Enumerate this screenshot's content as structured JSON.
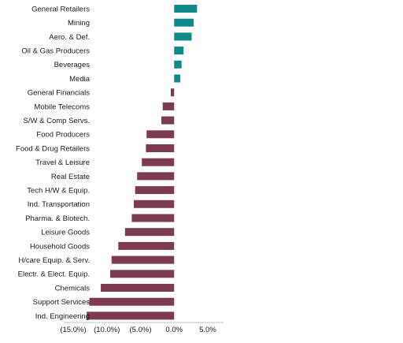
{
  "chart_data": {
    "type": "bar",
    "orientation": "horizontal",
    "categories": [
      "General Retailers",
      "Mining",
      "Aero. & Def.",
      "Oil & Gas Producers",
      "Beverages",
      "Media",
      "General Financials",
      "Mobile Telecoms",
      "S/W & Comp Servs.",
      "Food Producers",
      "Food & Drug Retailers",
      "Travel & Leisure",
      "Real Estate",
      "Tech H/W & Equip.",
      "Ind. Transportation",
      "Pharma. & Biotech.",
      "Leisure Goods",
      "Household Goods",
      "H/care Equip. & Serv.",
      "Electr. & Elect. Equip.",
      "Chemicals",
      "Support Services",
      "Ind. Engineering"
    ],
    "values": [
      3.4,
      2.9,
      2.6,
      1.4,
      1.1,
      0.9,
      -0.5,
      -1.7,
      -1.9,
      -4.1,
      -4.2,
      -4.8,
      -5.5,
      -5.8,
      -6.0,
      -6.3,
      -7.3,
      -8.3,
      -9.3,
      -9.5,
      -10.9,
      -12.6,
      -13.0
    ],
    "colors": {
      "positive": "#0e8a8a",
      "negative": "#7d3b50"
    },
    "xlim": [
      -15,
      5
    ],
    "xticks": [
      -15,
      -10,
      -5,
      0,
      5
    ],
    "xtick_labels": [
      "(15.0%)",
      "(10.0%)",
      "(5.0%)",
      "0.0%",
      "5.0%"
    ],
    "title": "",
    "xlabel": "",
    "ylabel": "",
    "grid": false,
    "legend": "none"
  }
}
